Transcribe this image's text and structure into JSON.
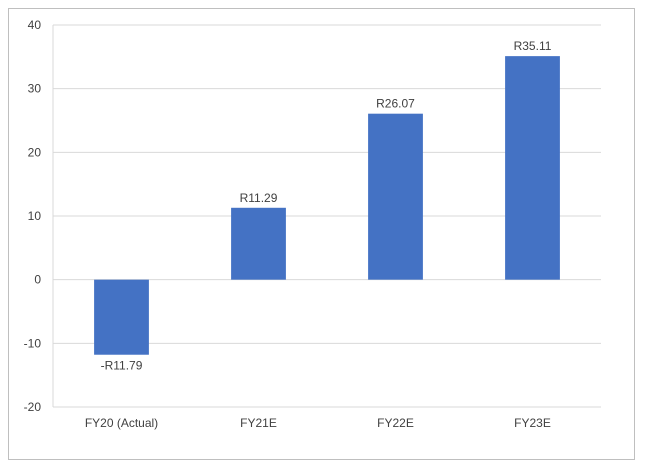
{
  "chart_data": {
    "type": "bar",
    "title": "",
    "xlabel": "",
    "ylabel": "",
    "categories": [
      "FY20 (Actual)",
      "FY21E",
      "FY22E",
      "FY23E"
    ],
    "values": [
      -11.79,
      11.29,
      26.07,
      35.11
    ],
    "data_labels": [
      "-R11.79",
      "R11.29",
      "R26.07",
      "R35.11"
    ],
    "ylim": [
      -20,
      40
    ],
    "yticks": [
      -20,
      -10,
      0,
      10,
      20,
      30,
      40
    ],
    "grid": true,
    "legend": "none",
    "bar_color": "#4472c4"
  }
}
